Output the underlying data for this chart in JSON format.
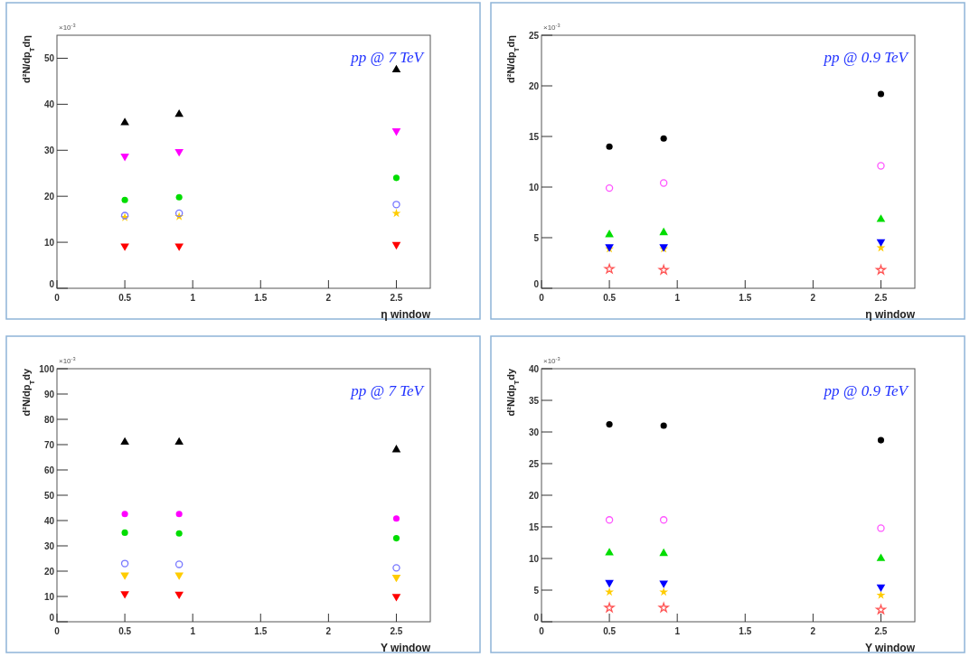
{
  "chart_data": [
    {
      "type": "scatter",
      "xlabel": "η window",
      "ylabel": "d²N/dp$_{T}$dη",
      "annotations": [
        "pp @ 7 TeV",
        "×10$^{-3}$"
      ],
      "xlim": [
        0,
        2.75
      ],
      "xticks": [
        0,
        0.5,
        1,
        1.5,
        2,
        2.5
      ],
      "ylim": [
        0,
        55
      ],
      "yticks": [
        0,
        10,
        20,
        30,
        40,
        50
      ],
      "x": [
        0.5,
        0.9,
        2.5
      ],
      "series": [
        {
          "color": "#000000",
          "marker": "triangle",
          "values": [
            36,
            37.8,
            47.5
          ]
        },
        {
          "color": "#ff00ff",
          "marker": "triangle-down",
          "values": [
            28.7,
            29.7,
            34.2
          ]
        },
        {
          "color": "#00dd00",
          "marker": "circle",
          "values": [
            19.2,
            19.8,
            24
          ]
        },
        {
          "color": "#7777ff",
          "marker": "circle-open",
          "values": [
            15.8,
            16.3,
            18.2
          ]
        },
        {
          "color": "#ffcc00",
          "marker": "star",
          "values": [
            15.4,
            15.6,
            16.3
          ]
        },
        {
          "color": "#ff0000",
          "marker": "triangle-down",
          "values": [
            9.2,
            9.2,
            9.5
          ]
        }
      ]
    },
    {
      "type": "scatter",
      "xlabel": "η window",
      "ylabel": "d²N/dp$_{T}$dη",
      "annotations": [
        "pp @ 0.9 TeV",
        "×10$^{-3}$"
      ],
      "xlim": [
        0,
        2.75
      ],
      "xticks": [
        0,
        0.5,
        1,
        1.5,
        2,
        2.5
      ],
      "ylim": [
        0,
        25
      ],
      "yticks": [
        0,
        5,
        10,
        15,
        20,
        25
      ],
      "x": [
        0.5,
        0.9,
        2.5
      ],
      "series": [
        {
          "color": "#000000",
          "marker": "circle",
          "values": [
            14.0,
            14.8,
            19.2
          ]
        },
        {
          "color": "#ff55ff",
          "marker": "circle-open",
          "values": [
            9.9,
            10.4,
            12.1
          ]
        },
        {
          "color": "#00dd00",
          "marker": "triangle",
          "values": [
            5.3,
            5.5,
            6.8
          ]
        },
        {
          "color": "#0000ff",
          "marker": "triangle-down",
          "values": [
            4.1,
            4.1,
            4.6
          ]
        },
        {
          "color": "#ffcc00",
          "marker": "star",
          "values": [
            3.9,
            3.9,
            4.0
          ]
        },
        {
          "color": "#ff5555",
          "marker": "star-open",
          "values": [
            1.9,
            1.8,
            1.8
          ]
        }
      ]
    },
    {
      "type": "scatter",
      "xlabel": "Y window",
      "ylabel": "d²N/dp$_{T}$dy",
      "annotations": [
        "pp @ 7 TeV",
        "×10$^{-3}$"
      ],
      "xlim": [
        0,
        2.75
      ],
      "xticks": [
        0,
        0.5,
        1,
        1.5,
        2,
        2.5
      ],
      "ylim": [
        0,
        100
      ],
      "yticks": [
        0,
        10,
        20,
        30,
        40,
        50,
        60,
        70,
        80,
        90,
        100
      ],
      "x": [
        0.5,
        0.9,
        2.5
      ],
      "series": [
        {
          "color": "#000000",
          "marker": "triangle",
          "values": [
            71,
            71,
            68
          ]
        },
        {
          "color": "#ff00ff",
          "marker": "circle",
          "values": [
            42.6,
            42.6,
            40.8
          ]
        },
        {
          "color": "#00dd00",
          "marker": "circle",
          "values": [
            35.2,
            34.9,
            33
          ]
        },
        {
          "color": "#7777ff",
          "marker": "circle-open",
          "values": [
            23,
            22.7,
            21.3
          ]
        },
        {
          "color": "#ffcc00",
          "marker": "triangle-down",
          "values": [
            18.5,
            18.5,
            17.6
          ]
        },
        {
          "color": "#ff0000",
          "marker": "triangle-down",
          "values": [
            11.1,
            10.9,
            10
          ]
        }
      ]
    },
    {
      "type": "scatter",
      "xlabel": "Y window",
      "ylabel": "d²N/dp$_{T}$dy",
      "annotations": [
        "pp @ 0.9 TeV",
        "×10$^{-3}$"
      ],
      "xlim": [
        0,
        2.75
      ],
      "xticks": [
        0,
        0.5,
        1,
        1.5,
        2,
        2.5
      ],
      "ylim": [
        0,
        40
      ],
      "yticks": [
        0,
        5,
        10,
        15,
        20,
        25,
        30,
        35,
        40
      ],
      "x": [
        0.5,
        0.9,
        2.5
      ],
      "series": [
        {
          "color": "#000000",
          "marker": "circle",
          "values": [
            31.2,
            31.0,
            28.7
          ]
        },
        {
          "color": "#ff55ff",
          "marker": "circle-open",
          "values": [
            16.1,
            16.1,
            14.8
          ]
        },
        {
          "color": "#00dd00",
          "marker": "triangle",
          "values": [
            10.9,
            10.8,
            10.0
          ]
        },
        {
          "color": "#0000ff",
          "marker": "triangle-down",
          "values": [
            6.2,
            6.1,
            5.5
          ]
        },
        {
          "color": "#ffcc00",
          "marker": "star",
          "values": [
            4.7,
            4.7,
            4.2
          ]
        },
        {
          "color": "#ff5555",
          "marker": "star-open",
          "values": [
            2.2,
            2.2,
            1.9
          ]
        }
      ]
    }
  ]
}
